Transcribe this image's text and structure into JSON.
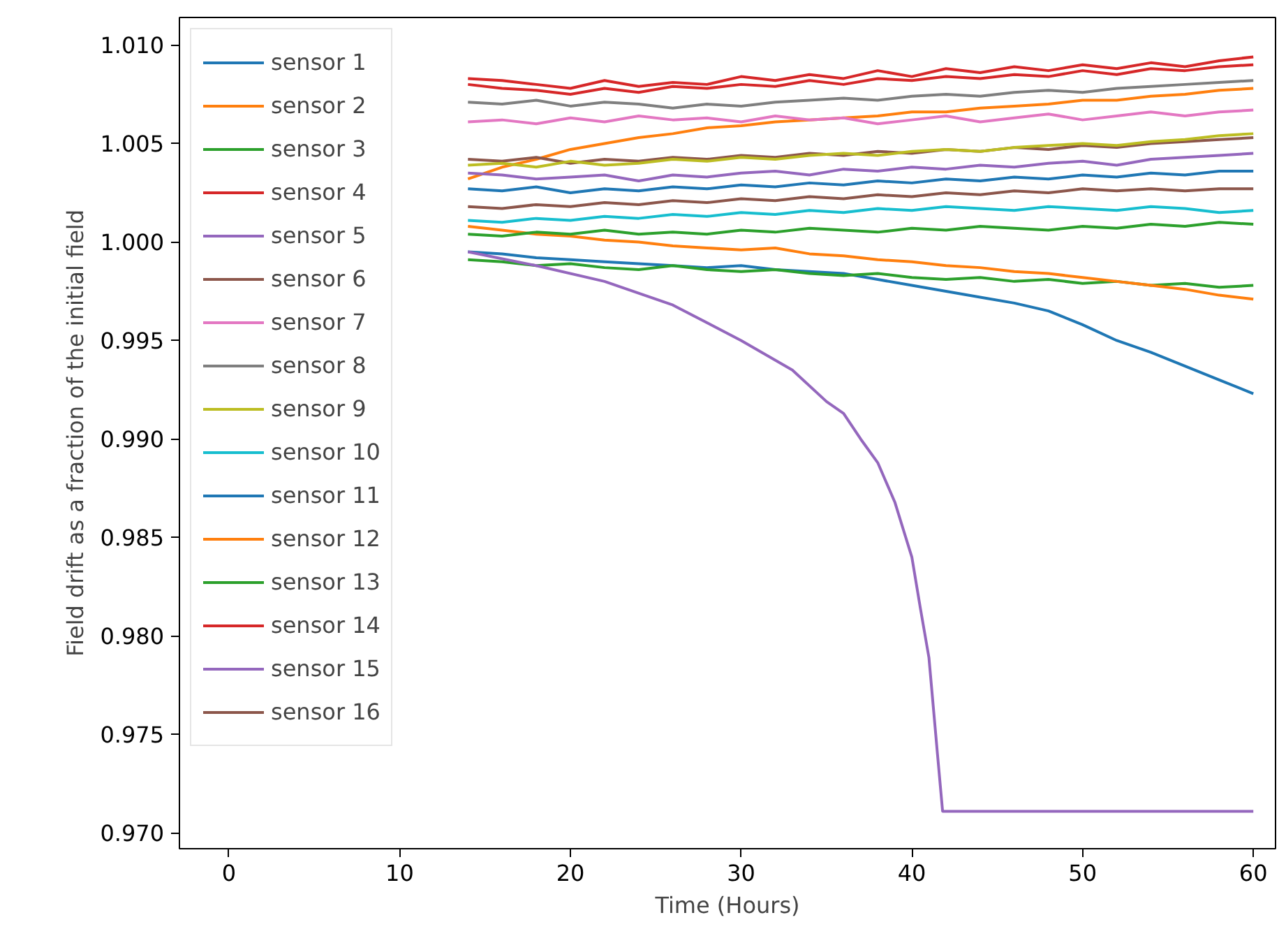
{
  "chart_data": {
    "type": "line",
    "xlabel": "Time (Hours)",
    "ylabel": "Field drift as a fraction of the initial field",
    "x": [
      14,
      16,
      18,
      20,
      22,
      24,
      26,
      28,
      30,
      32,
      34,
      36,
      38,
      40,
      42,
      44,
      46,
      48,
      50,
      52,
      54,
      56,
      58,
      60
    ],
    "xlim": [
      -2.9,
      61.3
    ],
    "xticks": [
      0,
      10,
      20,
      30,
      40,
      50,
      60
    ],
    "ylim": [
      0.9692,
      1.0114
    ],
    "yticks": [
      {
        "value": 0.97,
        "label": "0.970"
      },
      {
        "value": 0.975,
        "label": "0.975"
      },
      {
        "value": 0.98,
        "label": "0.980"
      },
      {
        "value": 0.985,
        "label": "0.985"
      },
      {
        "value": 0.99,
        "label": "0.990"
      },
      {
        "value": 0.995,
        "label": "0.995"
      },
      {
        "value": 1.0,
        "label": "1.000"
      },
      {
        "value": 1.005,
        "label": "1.005"
      },
      {
        "value": 1.01,
        "label": "1.010"
      }
    ],
    "grid": false,
    "legend": "top left",
    "marker": "none",
    "line_style": "solid",
    "series": [
      {
        "name": "sensor 1",
        "color": "#1f77b4",
        "values": [
          0.9995,
          0.9994,
          0.9992,
          0.9991,
          0.999,
          0.9989,
          0.9988,
          0.9987,
          0.9988,
          0.9986,
          0.9985,
          0.9984,
          0.9981,
          0.9978,
          0.9975,
          0.9972,
          0.9969,
          0.9965,
          0.9958,
          0.995,
          0.9944,
          0.9937,
          0.993,
          0.9923
        ]
      },
      {
        "name": "sensor 2",
        "color": "#ff7f0e",
        "values": [
          1.0032,
          1.0038,
          1.0042,
          1.0047,
          1.005,
          1.0053,
          1.0055,
          1.0058,
          1.0059,
          1.0061,
          1.0062,
          1.0063,
          1.0064,
          1.0066,
          1.0066,
          1.0068,
          1.0069,
          1.007,
          1.0072,
          1.0072,
          1.0074,
          1.0075,
          1.0077,
          1.0078
        ]
      },
      {
        "name": "sensor 3",
        "color": "#2ca02c",
        "values": [
          0.9991,
          0.999,
          0.9988,
          0.9989,
          0.9987,
          0.9986,
          0.9988,
          0.9986,
          0.9985,
          0.9986,
          0.9984,
          0.9983,
          0.9984,
          0.9982,
          0.9981,
          0.9982,
          0.998,
          0.9981,
          0.9979,
          0.998,
          0.9978,
          0.9979,
          0.9977,
          0.9978
        ]
      },
      {
        "name": "sensor 4",
        "color": "#d62728",
        "values": [
          1.0083,
          1.0082,
          1.008,
          1.0078,
          1.0082,
          1.0079,
          1.0081,
          1.008,
          1.0084,
          1.0082,
          1.0085,
          1.0083,
          1.0087,
          1.0084,
          1.0088,
          1.0086,
          1.0089,
          1.0087,
          1.009,
          1.0088,
          1.0091,
          1.0089,
          1.0092,
          1.0094
        ]
      },
      {
        "name": "sensor 5",
        "color": "#9467bd",
        "values": [
          1.0035,
          1.0034,
          1.0032,
          1.0033,
          1.0034,
          1.0031,
          1.0034,
          1.0033,
          1.0035,
          1.0036,
          1.0034,
          1.0037,
          1.0036,
          1.0038,
          1.0037,
          1.0039,
          1.0038,
          1.004,
          1.0041,
          1.0039,
          1.0042,
          1.0043,
          1.0044,
          1.0045
        ]
      },
      {
        "name": "sensor 6",
        "color": "#8c564b",
        "values": [
          1.0042,
          1.0041,
          1.0043,
          1.004,
          1.0042,
          1.0041,
          1.0043,
          1.0042,
          1.0044,
          1.0043,
          1.0045,
          1.0044,
          1.0046,
          1.0045,
          1.0047,
          1.0046,
          1.0048,
          1.0047,
          1.0049,
          1.0048,
          1.005,
          1.0051,
          1.0052,
          1.0053
        ]
      },
      {
        "name": "sensor 7",
        "color": "#e377c2",
        "values": [
          1.0061,
          1.0062,
          1.006,
          1.0063,
          1.0061,
          1.0064,
          1.0062,
          1.0063,
          1.0061,
          1.0064,
          1.0062,
          1.0063,
          1.006,
          1.0062,
          1.0064,
          1.0061,
          1.0063,
          1.0065,
          1.0062,
          1.0064,
          1.0066,
          1.0064,
          1.0066,
          1.0067
        ]
      },
      {
        "name": "sensor 8",
        "color": "#7f7f7f",
        "values": [
          1.0071,
          1.007,
          1.0072,
          1.0069,
          1.0071,
          1.007,
          1.0068,
          1.007,
          1.0069,
          1.0071,
          1.0072,
          1.0073,
          1.0072,
          1.0074,
          1.0075,
          1.0074,
          1.0076,
          1.0077,
          1.0076,
          1.0078,
          1.0079,
          1.008,
          1.0081,
          1.0082
        ]
      },
      {
        "name": "sensor 9",
        "color": "#bcbd22",
        "values": [
          1.0039,
          1.004,
          1.0038,
          1.0041,
          1.0039,
          1.004,
          1.0042,
          1.0041,
          1.0043,
          1.0042,
          1.0044,
          1.0045,
          1.0044,
          1.0046,
          1.0047,
          1.0046,
          1.0048,
          1.0049,
          1.005,
          1.0049,
          1.0051,
          1.0052,
          1.0054,
          1.0055
        ]
      },
      {
        "name": "sensor 10",
        "color": "#17becf",
        "values": [
          1.0011,
          1.001,
          1.0012,
          1.0011,
          1.0013,
          1.0012,
          1.0014,
          1.0013,
          1.0015,
          1.0014,
          1.0016,
          1.0015,
          1.0017,
          1.0016,
          1.0018,
          1.0017,
          1.0016,
          1.0018,
          1.0017,
          1.0016,
          1.0018,
          1.0017,
          1.0015,
          1.0016
        ]
      },
      {
        "name": "sensor 11",
        "color": "#1f77b4",
        "values": [
          1.0027,
          1.0026,
          1.0028,
          1.0025,
          1.0027,
          1.0026,
          1.0028,
          1.0027,
          1.0029,
          1.0028,
          1.003,
          1.0029,
          1.0031,
          1.003,
          1.0032,
          1.0031,
          1.0033,
          1.0032,
          1.0034,
          1.0033,
          1.0035,
          1.0034,
          1.0036,
          1.0036
        ]
      },
      {
        "name": "sensor 12",
        "color": "#ff7f0e",
        "values": [
          1.0008,
          1.0006,
          1.0004,
          1.0003,
          1.0001,
          1.0,
          0.9998,
          0.9997,
          0.9996,
          0.9997,
          0.9994,
          0.9993,
          0.9991,
          0.999,
          0.9988,
          0.9987,
          0.9985,
          0.9984,
          0.9982,
          0.998,
          0.9978,
          0.9976,
          0.9973,
          0.9971
        ]
      },
      {
        "name": "sensor 13",
        "color": "#2ca02c",
        "values": [
          1.0004,
          1.0003,
          1.0005,
          1.0004,
          1.0006,
          1.0004,
          1.0005,
          1.0004,
          1.0006,
          1.0005,
          1.0007,
          1.0006,
          1.0005,
          1.0007,
          1.0006,
          1.0008,
          1.0007,
          1.0006,
          1.0008,
          1.0007,
          1.0009,
          1.0008,
          1.001,
          1.0009
        ]
      },
      {
        "name": "sensor 14",
        "color": "#d62728",
        "values": [
          1.008,
          1.0078,
          1.0077,
          1.0075,
          1.0078,
          1.0076,
          1.0079,
          1.0078,
          1.008,
          1.0079,
          1.0082,
          1.008,
          1.0083,
          1.0082,
          1.0084,
          1.0083,
          1.0085,
          1.0084,
          1.0087,
          1.0085,
          1.0088,
          1.0087,
          1.0089,
          1.009
        ]
      },
      {
        "name": "sensor 15",
        "color": "#9467bd",
        "x": [
          14,
          18,
          22,
          26,
          30,
          33,
          35,
          36,
          37,
          38,
          39,
          40,
          40.5,
          41,
          41.5,
          41.8,
          45,
          50,
          55,
          60
        ],
        "values": [
          0.9995,
          0.9988,
          0.998,
          0.9968,
          0.995,
          0.9935,
          0.9919,
          0.9913,
          0.99,
          0.9888,
          0.9868,
          0.984,
          0.9814,
          0.9789,
          0.974,
          0.9711,
          0.9711,
          0.9711,
          0.9711,
          0.9711
        ]
      },
      {
        "name": "sensor 16",
        "color": "#8c564b",
        "values": [
          1.0018,
          1.0017,
          1.0019,
          1.0018,
          1.002,
          1.0019,
          1.0021,
          1.002,
          1.0022,
          1.0021,
          1.0023,
          1.0022,
          1.0024,
          1.0023,
          1.0025,
          1.0024,
          1.0026,
          1.0025,
          1.0027,
          1.0026,
          1.0027,
          1.0026,
          1.0027,
          1.0027
        ]
      }
    ]
  }
}
